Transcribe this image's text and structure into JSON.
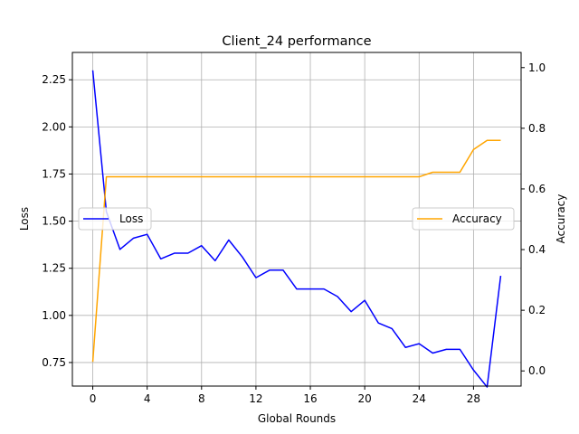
{
  "chart_data": {
    "type": "line",
    "title": "Client_24 performance",
    "xlabel": "Global Rounds",
    "ylabel_left": "Loss",
    "ylabel_right": "Accuracy",
    "x": [
      0,
      1,
      2,
      3,
      4,
      5,
      6,
      7,
      8,
      9,
      10,
      11,
      12,
      13,
      14,
      15,
      16,
      17,
      18,
      19,
      20,
      21,
      22,
      23,
      24,
      25,
      26,
      27,
      28,
      29,
      30
    ],
    "x_ticks": [
      0,
      4,
      8,
      12,
      16,
      20,
      24,
      28
    ],
    "x_tick_labels": [
      "0",
      "4",
      "8",
      "12",
      "16",
      "20",
      "24",
      "28"
    ],
    "xlim": [
      -1.5,
      31.5
    ],
    "ylim_left": [
      0.625,
      2.395
    ],
    "ylim_right": [
      -0.05,
      1.05
    ],
    "y_ticks_left": [
      0.75,
      1.0,
      1.25,
      1.5,
      1.75,
      2.0,
      2.25
    ],
    "y_tick_labels_left": [
      "0.75",
      "1.00",
      "1.25",
      "1.50",
      "1.75",
      "2.00",
      "2.25"
    ],
    "y_ticks_right": [
      0.0,
      0.2,
      0.4,
      0.6,
      0.8,
      1.0
    ],
    "y_tick_labels_right": [
      "0.0",
      "0.2",
      "0.4",
      "0.6",
      "0.8",
      "1.0"
    ],
    "grid": true,
    "series": [
      {
        "name": "Loss",
        "axis": "left",
        "color": "#0000ff",
        "legend_position": "center-left",
        "values": [
          2.3,
          1.55,
          1.35,
          1.41,
          1.43,
          1.3,
          1.33,
          1.33,
          1.37,
          1.29,
          1.4,
          1.31,
          1.2,
          1.24,
          1.24,
          1.14,
          1.14,
          1.14,
          1.1,
          1.02,
          1.08,
          0.96,
          0.93,
          0.83,
          0.85,
          0.8,
          0.82,
          0.82,
          0.71,
          0.62,
          1.21
        ]
      },
      {
        "name": "Accuracy",
        "axis": "right",
        "color": "#ffa500",
        "legend_position": "center-right",
        "values": [
          0.03,
          0.64,
          0.64,
          0.64,
          0.64,
          0.64,
          0.64,
          0.64,
          0.64,
          0.64,
          0.64,
          0.64,
          0.64,
          0.64,
          0.64,
          0.64,
          0.64,
          0.64,
          0.64,
          0.64,
          0.64,
          0.64,
          0.64,
          0.64,
          0.64,
          0.655,
          0.655,
          0.655,
          0.73,
          0.76,
          0.76
        ]
      }
    ]
  }
}
